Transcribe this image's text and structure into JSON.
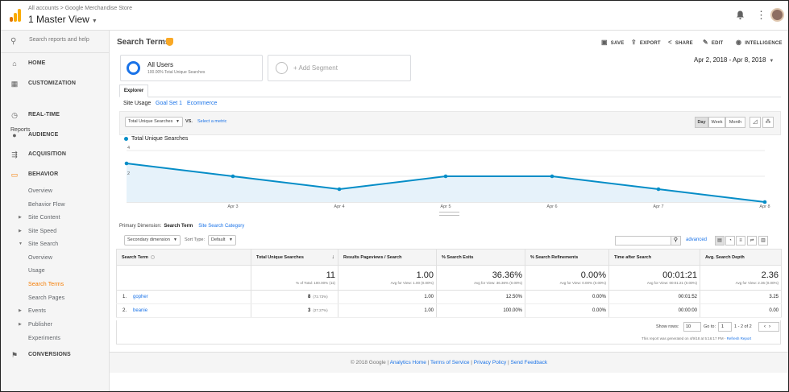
{
  "topbar": {
    "breadcrumb": "All accounts > Google Merchandise Store",
    "view_name": "1 Master View",
    "logo_colors": [
      "#f9ab00",
      "#e37400"
    ]
  },
  "sidebar": {
    "search_placeholder": "Search reports and help",
    "home": "HOME",
    "customization": "CUSTOMIZATION",
    "reports_label": "Reports",
    "items": [
      {
        "label": "REAL-TIME",
        "icon": "clock-icon"
      },
      {
        "label": "AUDIENCE",
        "icon": "person-icon"
      },
      {
        "label": "ACQUISITION",
        "icon": "acquisition-icon"
      },
      {
        "label": "BEHAVIOR",
        "icon": "behavior-icon"
      }
    ],
    "behavior_sub": [
      "Overview",
      "Behavior Flow",
      "Site Content",
      "Site Speed",
      "Site Search"
    ],
    "site_search_sub": [
      "Overview",
      "Usage",
      "Search Terms",
      "Search Pages"
    ],
    "more_sub": [
      "Events",
      "Publisher",
      "Experiments"
    ],
    "conversions": "CONVERSIONS",
    "active_color": "#f57c00"
  },
  "header": {
    "title": "Search Terms",
    "actions": [
      "SAVE",
      "EXPORT",
      "SHARE",
      "EDIT",
      "INTELLIGENCE"
    ]
  },
  "segments": {
    "seg1_title": "All Users",
    "seg1_sub": "100.00% Total Unique Searches",
    "add_segment": "+ Add Segment",
    "date_range": "Apr 2, 2018 - Apr 8, 2018"
  },
  "explorer": {
    "tab": "Explorer",
    "subtabs": [
      "Site Usage",
      "Goal Set 1",
      "Ecommerce"
    ]
  },
  "chart_controls": {
    "metric": "Total Unique Searches",
    "vs": "VS.",
    "select_metric": "Select a metric",
    "granularity": [
      "Day",
      "Week",
      "Month"
    ],
    "active_granularity": "Day"
  },
  "chart_data": {
    "type": "area",
    "series": [
      {
        "name": "Total Unique Searches",
        "values": [
          3,
          2,
          1,
          2,
          2,
          1,
          0
        ]
      }
    ],
    "x": [
      "Apr 2",
      "Apr 3",
      "Apr 4",
      "Apr 5",
      "Apr 6",
      "Apr 7",
      "Apr 8"
    ],
    "x_tick_labels": [
      "",
      "Apr 3",
      "Apr 4",
      "Apr 5",
      "Apr 6",
      "Apr 7",
      "Apr 8"
    ],
    "y_tick_labels": [
      "4",
      "2"
    ],
    "ylim": [
      0,
      4
    ],
    "grid": true,
    "legend": "top-left",
    "color": "#058dc7"
  },
  "table_controls": {
    "primary_dimension_label": "Primary Dimension:",
    "primary_dimension": "Search Term",
    "alt_dimension": "Site Search Category",
    "secondary_dimension": "Secondary dimension",
    "sort_type_label": "Sort Type:",
    "sort_type": "Default",
    "advanced": "advanced"
  },
  "table": {
    "columns": [
      "Search Term",
      "Total Unique Searches",
      "Results Pageviews / Search",
      "% Search Exits",
      "% Search Refinements",
      "Time after Search",
      "Avg. Search Depth"
    ],
    "totals": [
      {
        "value": "11",
        "sub": "% of Total: 100.00% (11)"
      },
      {
        "value": "1.00",
        "sub": "Avg for View: 1.00 (0.00%)"
      },
      {
        "value": "36.36%",
        "sub": "Avg for View: 36.36% (0.00%)"
      },
      {
        "value": "0.00%",
        "sub": "Avg for View: 0.00% (0.00%)"
      },
      {
        "value": "00:01:21",
        "sub": "Avg for View: 00:01:21 (0.00%)"
      },
      {
        "value": "2.36",
        "sub": "Avg for View: 2.36 (0.00%)"
      }
    ],
    "rows": [
      {
        "index": "1.",
        "term": "gopher",
        "searches": "8",
        "pct": "(72.73%)",
        "rpv": "1.00",
        "exits": "12.50%",
        "refine": "0.00%",
        "time": "00:01:52",
        "depth": "3.25"
      },
      {
        "index": "2.",
        "term": "beanie",
        "searches": "3",
        "pct": "(27.27%)",
        "rpv": "1.00",
        "exits": "100.00%",
        "refine": "0.00%",
        "time": "00:00:00",
        "depth": "0.00"
      }
    ]
  },
  "pager": {
    "show_rows_label": "Show rows:",
    "show_rows": "10",
    "goto_label": "Go to:",
    "goto": "1",
    "range": "1 - 2 of 2",
    "generated": "This report was generated on 4/9/18 at 5:16:17 PM -",
    "refresh": "Refresh Report"
  },
  "footer": {
    "copyright": "© 2018 Google",
    "links": [
      "Analytics Home",
      "Terms of Service",
      "Privacy Policy",
      "Send Feedback"
    ]
  }
}
